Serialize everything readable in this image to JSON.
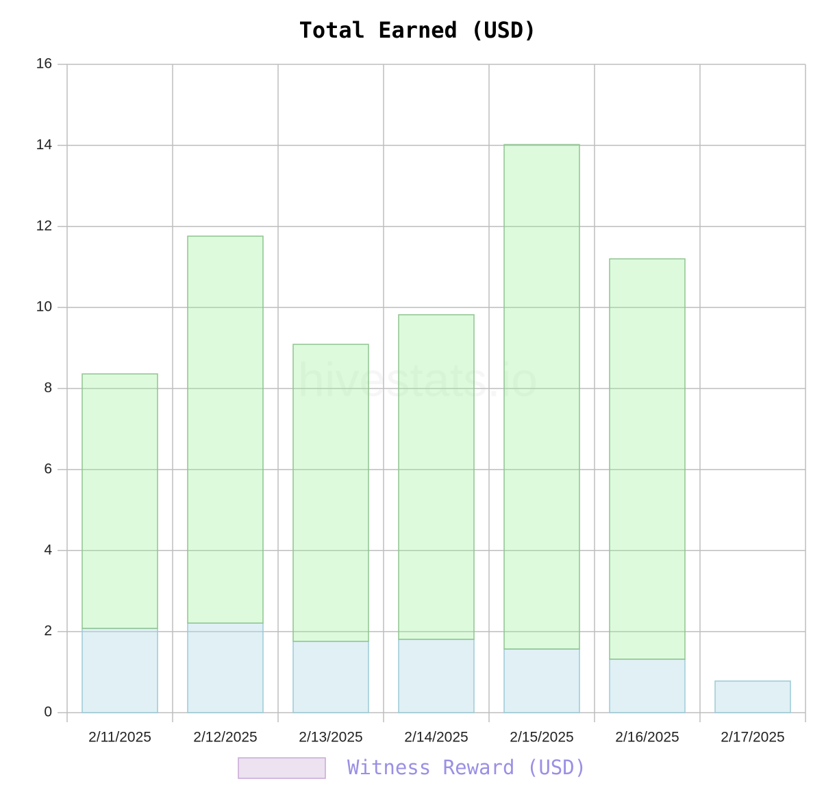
{
  "chart_data": {
    "type": "stacked_bar",
    "title": "Total Earned (USD)",
    "watermark": "hivestats.io",
    "categories": [
      "2/11/2025",
      "2/12/2025",
      "2/13/2025",
      "2/14/2025",
      "2/15/2025",
      "2/16/2025",
      "2/17/2025"
    ],
    "series": [
      {
        "fill": "rgba(173,216,230,0.38)",
        "color": "#9ccad6",
        "values": [
          2.08,
          2.21,
          1.76,
          1.81,
          1.57,
          1.32,
          0.78
        ]
      },
      {
        "fill": "rgba(144,238,144,0.3)",
        "color": "#8fc48f",
        "values": [
          6.28,
          9.55,
          7.33,
          8.01,
          12.45,
          9.88,
          0
        ]
      }
    ],
    "legend": [
      {
        "name": "Witness Reward (USD)",
        "fill": "#ece2f0",
        "color": "#c9a7d6"
      }
    ],
    "ylim": [
      0,
      16
    ],
    "yticks": [
      0,
      2,
      4,
      6,
      8,
      10,
      12,
      14,
      16
    ],
    "grid": true
  }
}
